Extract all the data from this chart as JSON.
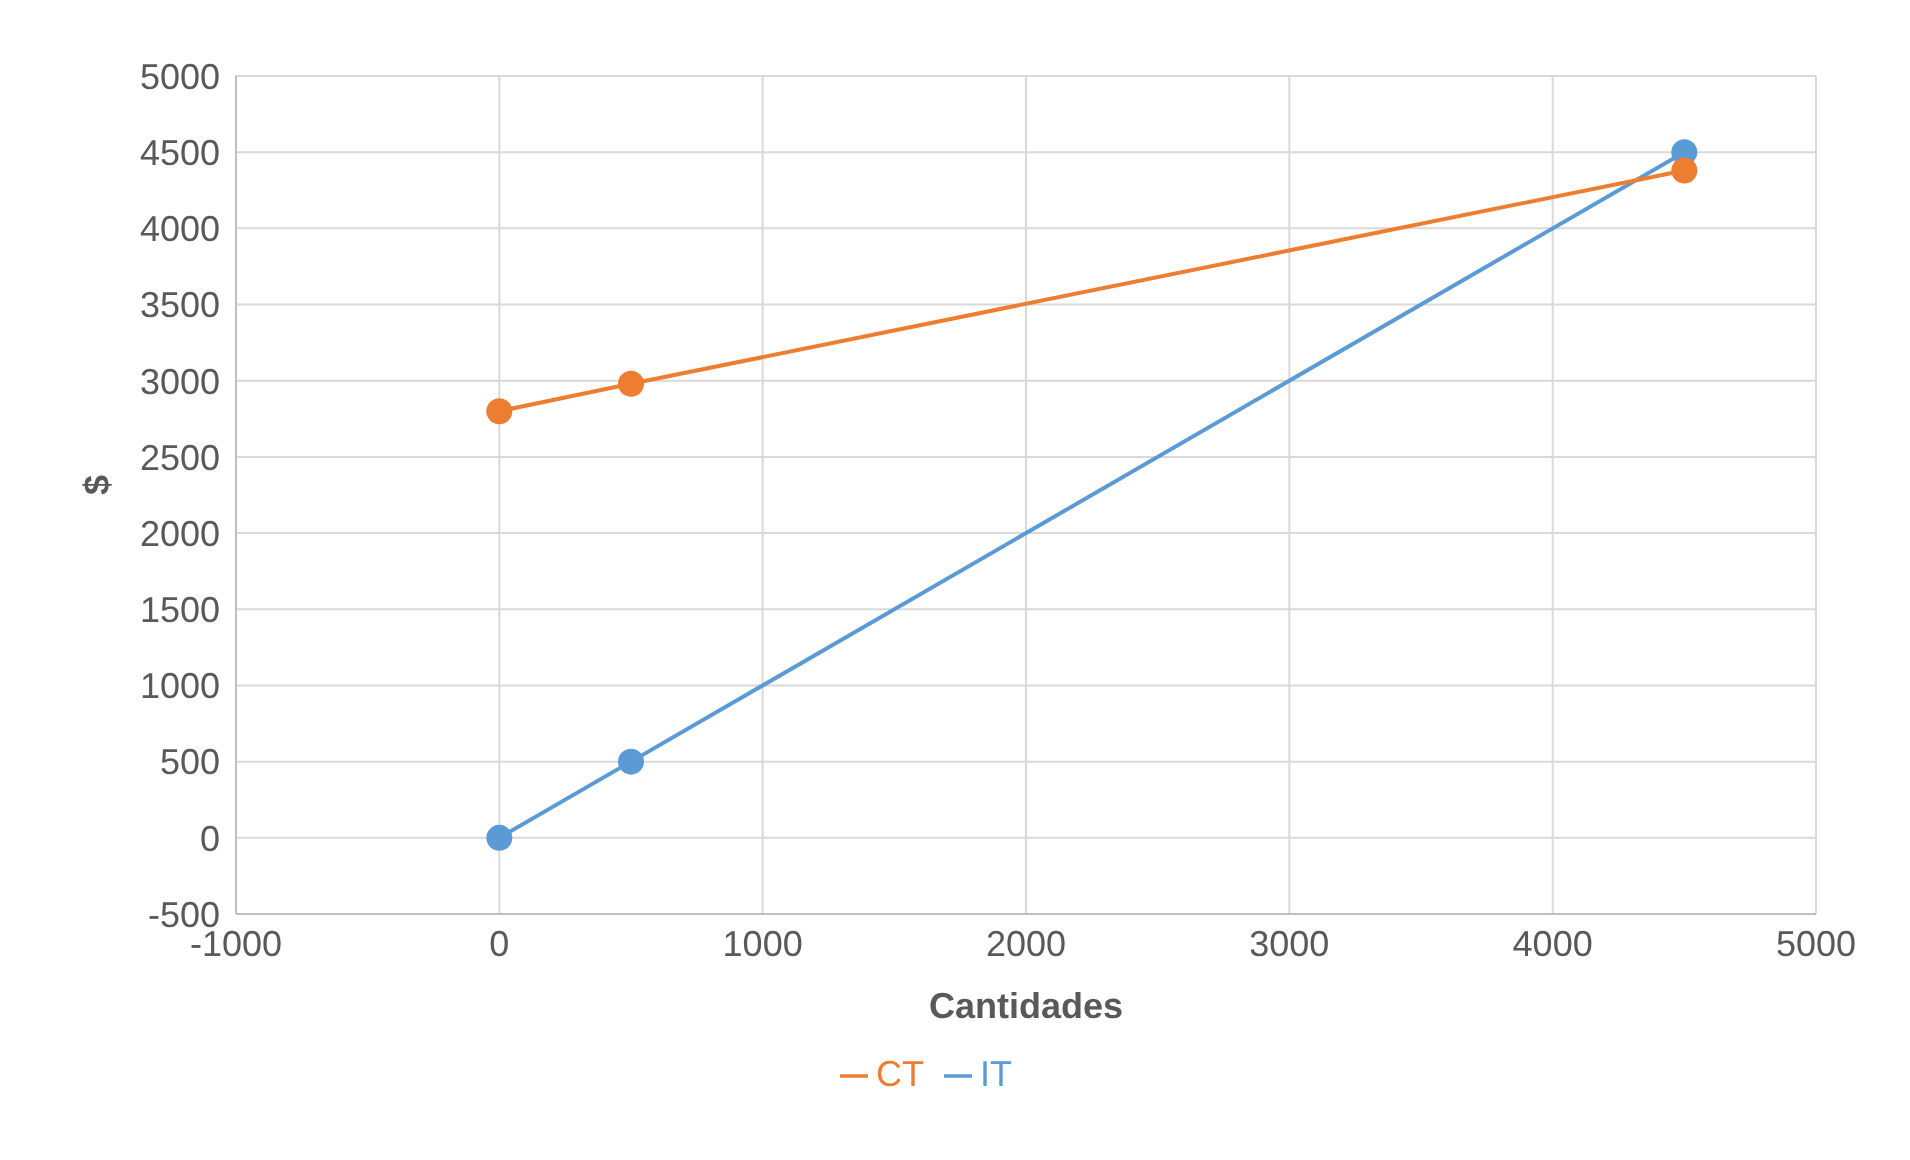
{
  "chart_data": {
    "type": "line",
    "xlabel": "Cantidades",
    "ylabel": "$",
    "x": [
      0,
      500,
      4500
    ],
    "series": [
      {
        "name": "IT",
        "color": "#5b9bd5",
        "values": [
          0,
          500,
          4500
        ]
      },
      {
        "name": "CT",
        "color": "#ed7d31",
        "values": [
          2800,
          2980,
          4380
        ]
      }
    ],
    "xlim": [
      -1000,
      5000
    ],
    "xticks": [
      -1000,
      0,
      1000,
      2000,
      3000,
      4000,
      5000
    ],
    "ylim": [
      -500,
      5000
    ],
    "yticks": [
      -500,
      0,
      500,
      1000,
      1500,
      2000,
      2500,
      3000,
      3500,
      4000,
      4500,
      5000
    ],
    "grid": true,
    "legend": "bottom",
    "marker": "circle",
    "line_style": "solid"
  }
}
